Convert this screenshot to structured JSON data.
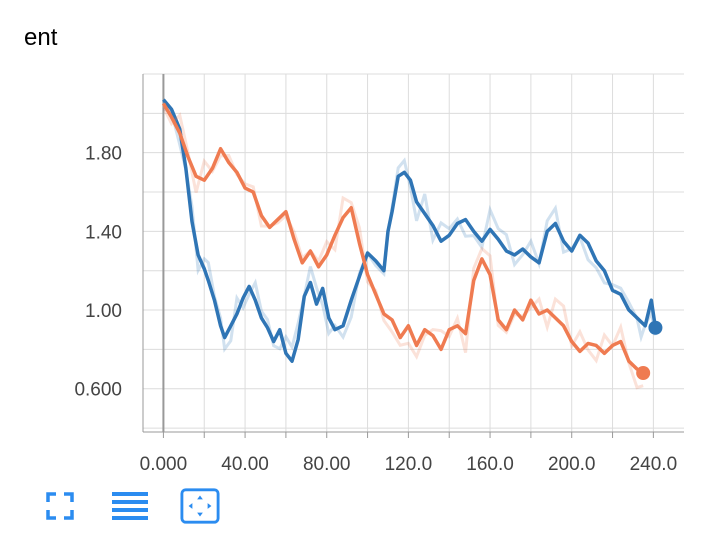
{
  "card": {
    "title": "ent"
  },
  "toolbar": {
    "buttons": [
      "fullscreen-icon",
      "list-icon",
      "fit-domain-icon"
    ]
  },
  "colors": {
    "blue": "#2f75b5",
    "orange": "#ef7b51",
    "grid": "#dcdcdc",
    "axis": "#999999"
  },
  "chart_data": {
    "type": "line",
    "title": "ent",
    "xlabel": "",
    "ylabel": "",
    "xlim": [
      -10,
      255
    ],
    "ylim": [
      0.38,
      2.2
    ],
    "x_ticks": [
      0,
      40,
      80,
      120,
      160,
      200,
      240
    ],
    "x_tick_labels": [
      "0.000",
      "40.00",
      "80.00",
      "120.0",
      "160.0",
      "200.0",
      "240.0"
    ],
    "y_ticks": [
      0.6,
      1.0,
      1.4,
      1.8
    ],
    "y_tick_labels": [
      "0.600",
      "1.00",
      "1.40",
      "1.80"
    ],
    "grid": true,
    "series": [
      {
        "color": "#2f75b5",
        "x": [
          0,
          4,
          8,
          11,
          14,
          17,
          20,
          22,
          25,
          28,
          30,
          33,
          36,
          39,
          42,
          45,
          48,
          51,
          54,
          57,
          60,
          63,
          66,
          69,
          72,
          75,
          78,
          81,
          84,
          88,
          92,
          96,
          100,
          104,
          108,
          110,
          112,
          115,
          118,
          121,
          124,
          128,
          132,
          136,
          140,
          144,
          148,
          152,
          156,
          160,
          164,
          168,
          172,
          176,
          180,
          184,
          188,
          192,
          196,
          200,
          204,
          208,
          212,
          216,
          220,
          224,
          228,
          232,
          234,
          236,
          239,
          241
        ],
        "y": [
          2.07,
          2.02,
          1.92,
          1.72,
          1.45,
          1.28,
          1.21,
          1.15,
          1.05,
          0.92,
          0.86,
          0.92,
          0.98,
          1.06,
          1.12,
          1.05,
          0.96,
          0.91,
          0.84,
          0.9,
          0.78,
          0.74,
          0.85,
          1.07,
          1.14,
          1.03,
          1.11,
          0.96,
          0.9,
          0.92,
          1.05,
          1.17,
          1.29,
          1.25,
          1.2,
          1.4,
          1.5,
          1.68,
          1.7,
          1.66,
          1.55,
          1.49,
          1.43,
          1.35,
          1.38,
          1.44,
          1.46,
          1.4,
          1.35,
          1.41,
          1.36,
          1.3,
          1.28,
          1.31,
          1.27,
          1.24,
          1.4,
          1.44,
          1.35,
          1.3,
          1.38,
          1.34,
          1.25,
          1.2,
          1.1,
          1.08,
          1.0,
          0.96,
          0.94,
          0.92,
          1.05,
          0.91
        ],
        "end_marker": [
          241,
          0.91
        ]
      },
      {
        "color": "#ef7b51",
        "x": [
          0,
          4,
          8,
          12,
          16,
          20,
          24,
          28,
          32,
          36,
          40,
          44,
          48,
          52,
          56,
          60,
          64,
          68,
          72,
          76,
          80,
          84,
          88,
          92,
          96,
          100,
          104,
          108,
          112,
          116,
          120,
          124,
          128,
          132,
          136,
          140,
          144,
          148,
          152,
          156,
          160,
          164,
          168,
          172,
          176,
          180,
          184,
          188,
          192,
          196,
          200,
          204,
          208,
          212,
          216,
          220,
          224,
          228,
          232,
          235
        ],
        "y": [
          2.05,
          1.98,
          1.9,
          1.78,
          1.68,
          1.66,
          1.72,
          1.82,
          1.75,
          1.7,
          1.62,
          1.6,
          1.48,
          1.42,
          1.46,
          1.5,
          1.36,
          1.24,
          1.3,
          1.22,
          1.28,
          1.38,
          1.47,
          1.52,
          1.34,
          1.18,
          1.08,
          0.98,
          0.95,
          0.86,
          0.92,
          0.82,
          0.9,
          0.87,
          0.8,
          0.9,
          0.92,
          0.88,
          1.15,
          1.26,
          1.18,
          0.95,
          0.9,
          1.0,
          0.95,
          1.05,
          0.98,
          1.0,
          0.96,
          0.92,
          0.84,
          0.79,
          0.83,
          0.82,
          0.78,
          0.82,
          0.84,
          0.74,
          0.7,
          0.68
        ],
        "end_marker": [
          235,
          0.68
        ]
      }
    ]
  }
}
